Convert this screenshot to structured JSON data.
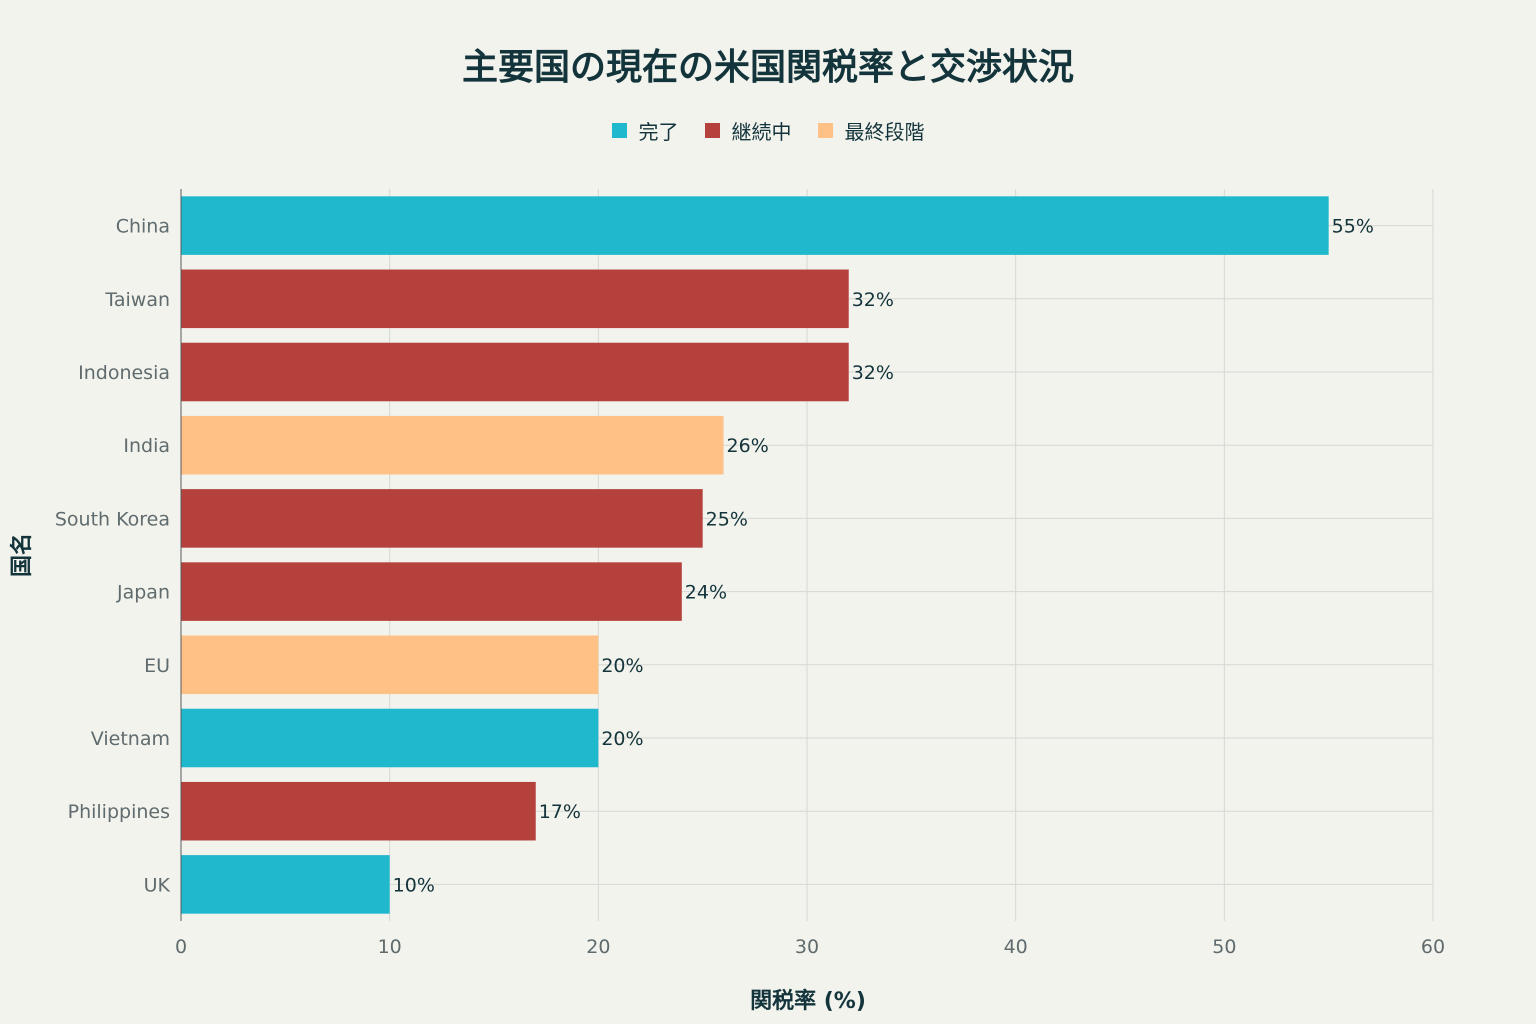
{
  "chart_data": {
    "type": "bar",
    "orientation": "horizontal",
    "title": "主要国の現在の米国関税率と交渉状況",
    "xlabel": "関税率 (%)",
    "ylabel": "国名",
    "xlim": [
      0,
      60
    ],
    "xticks": [
      0,
      10,
      20,
      30,
      40,
      50,
      60
    ],
    "grid": true,
    "legend_position": "top-center",
    "legend": [
      {
        "name": "完了",
        "color": "#1fb8cd"
      },
      {
        "name": "継続中",
        "color": "#b4413c"
      },
      {
        "name": "最終段階",
        "color": "#ffc185"
      }
    ],
    "categories": [
      "China",
      "Taiwan",
      "Indonesia",
      "India",
      "South Korea",
      "Japan",
      "EU",
      "Vietnam",
      "Philippines",
      "UK"
    ],
    "values": [
      55,
      32,
      32,
      26,
      25,
      24,
      20,
      20,
      17,
      10
    ],
    "status": [
      "完了",
      "継続中",
      "継続中",
      "最終段階",
      "継続中",
      "継続中",
      "最終段階",
      "完了",
      "継続中",
      "完了"
    ],
    "data_labels": [
      "55%",
      "32%",
      "32%",
      "26%",
      "25%",
      "24%",
      "20%",
      "20%",
      "17%",
      "10%"
    ]
  }
}
